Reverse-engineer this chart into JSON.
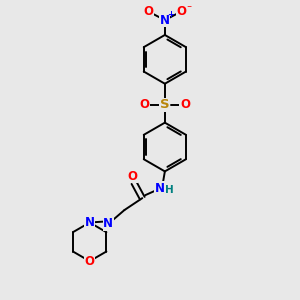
{
  "bg_color": "#e8e8e8",
  "bond_color": "#000000",
  "atom_colors": {
    "O": "#ff0000",
    "N": "#0000ff",
    "S": "#b8860b",
    "H": "#008080",
    "C": "#000000"
  },
  "lw": 1.4,
  "fs": 8.5
}
